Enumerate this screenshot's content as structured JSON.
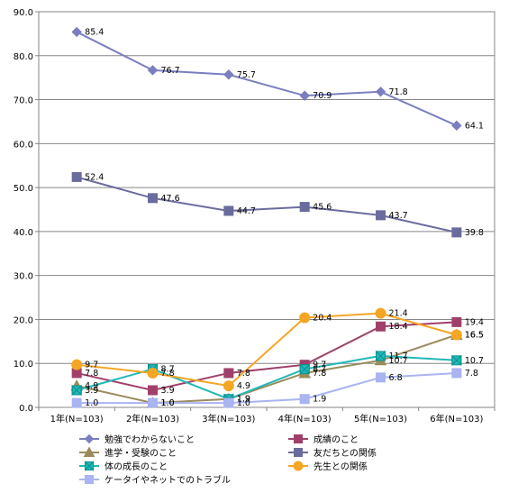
{
  "chart_data": {
    "type": "line",
    "categories": [
      "1年(N=103)",
      "2年(N=103)",
      "3年(N=103)",
      "4年(N=103)",
      "5年(N=103)",
      "6年(N=103)"
    ],
    "ylim": [
      0,
      90
    ],
    "yticks": [
      "0.0",
      "10.0",
      "20.0",
      "30.0",
      "40.0",
      "50.0",
      "60.0",
      "70.0",
      "80.0",
      "90.0"
    ],
    "grid": true,
    "legend_position": "bottom",
    "series": [
      {
        "name": "勉強でわからないこと",
        "values": [
          85.4,
          76.7,
          75.7,
          70.9,
          71.8,
          64.1
        ],
        "labels": [
          "85.4",
          "76.7",
          "75.7",
          "70.9",
          "71.8",
          "64.1"
        ],
        "color": "#7b7fbf",
        "marker": "diamond"
      },
      {
        "name": "成績のこと",
        "values": [
          7.8,
          3.9,
          7.8,
          9.7,
          18.4,
          19.4
        ],
        "labels": [
          "7.8",
          "3.9",
          "7.8",
          "9.7",
          "18.4",
          "19.4"
        ],
        "color": "#a0406a",
        "marker": "square"
      },
      {
        "name": "進学・受験のこと",
        "values": [
          4.9,
          1.0,
          1.9,
          7.8,
          10.7,
          16.5
        ],
        "labels": [
          "4.9",
          "1.0",
          "1.9",
          "7.8",
          "10.7",
          "16.5"
        ],
        "color": "#9a8b5c",
        "marker": "triangle"
      },
      {
        "name": "友だちとの関係",
        "values": [
          52.4,
          47.6,
          44.7,
          45.6,
          43.7,
          39.8
        ],
        "labels": [
          "52.4",
          "47.6",
          "44.7",
          "45.6",
          "43.7",
          "39.8"
        ],
        "color": "#6a6c9e",
        "marker": "square"
      },
      {
        "name": "体の成長のこと",
        "values": [
          3.9,
          8.7,
          1.9,
          8.7,
          11.7,
          10.7
        ],
        "labels": [
          "3.9",
          "8.7",
          "1.9",
          "8.7",
          "11.7",
          "10.7"
        ],
        "color": "#20b8b8",
        "marker": "bowtie"
      },
      {
        "name": "先生との関係",
        "values": [
          9.7,
          7.8,
          4.9,
          20.4,
          21.4,
          16.5
        ],
        "labels": [
          "9.7",
          "7.8",
          "4.9",
          "20.4",
          "21.4",
          "16.5"
        ],
        "color": "#f5a623",
        "marker": "circle"
      },
      {
        "name": "ケータイやネットでのトラブル",
        "values": [
          1.0,
          1.0,
          1.0,
          1.9,
          6.8,
          7.8
        ],
        "labels": [
          "1.0",
          "1.0",
          "1.0",
          "1.9",
          "6.8",
          "7.8"
        ],
        "color": "#a9b4f0",
        "marker": "square"
      }
    ]
  }
}
